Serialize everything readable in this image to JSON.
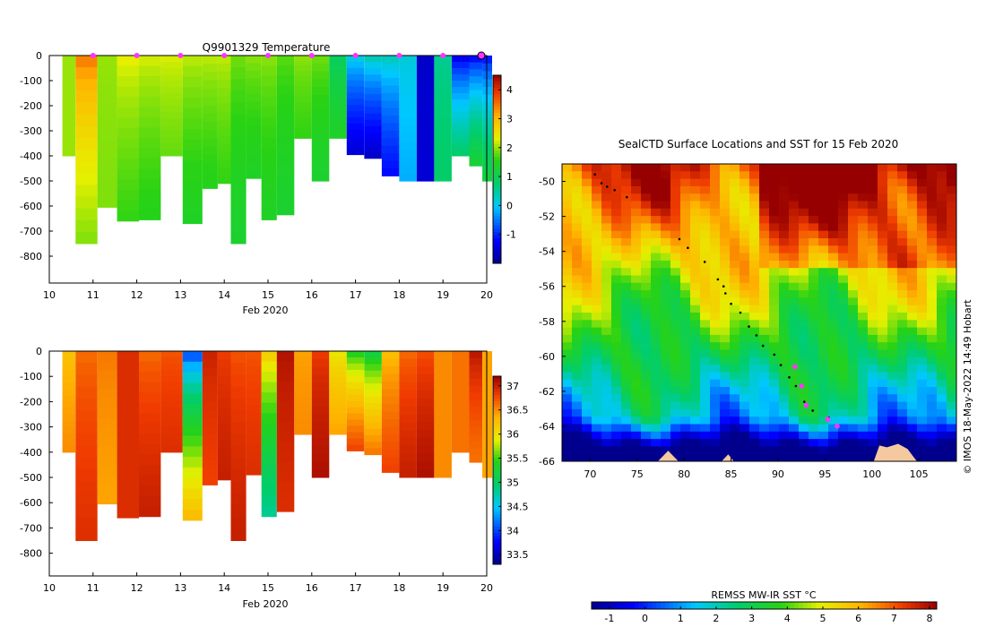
{
  "temperature_panel": {
    "title": "Q9901329  Temperature",
    "xlabel": "Feb 2020",
    "x_ticks": [
      "10",
      "11",
      "12",
      "13",
      "14",
      "15",
      "16",
      "17",
      "18",
      "19",
      "20"
    ],
    "y_ticks": [
      "0",
      "-100",
      "-200",
      "-300",
      "-400",
      "-500",
      "-600",
      "-700",
      "-800"
    ],
    "colorbar_ticks": [
      "4",
      "3",
      "2",
      "1",
      "0",
      "-1"
    ]
  },
  "salinity_panel": {
    "xlabel": "Feb 2020",
    "x_ticks": [
      "10",
      "11",
      "12",
      "13",
      "14",
      "15",
      "16",
      "17",
      "18",
      "19",
      "20"
    ],
    "y_ticks": [
      "0",
      "-100",
      "-200",
      "-300",
      "-400",
      "-500",
      "-600",
      "-700",
      "-800"
    ],
    "colorbar_ticks": [
      "37",
      "36.5",
      "36",
      "35.5",
      "35",
      "34.5",
      "34",
      "33.5"
    ]
  },
  "map_panel": {
    "title": "SealCTD Surface Locations and SST for 15 Feb 2020",
    "lon_ticks": [
      "70",
      "75",
      "80",
      "85",
      "90",
      "95",
      "100",
      "105"
    ],
    "lat_ticks": [
      "-50",
      "-52",
      "-54",
      "-56",
      "-58",
      "-60",
      "-62",
      "-64",
      "-66"
    ],
    "sst_colorbar_label": "REMSS MW-IR SST °C",
    "sst_colorbar_ticks": [
      "-1",
      "0",
      "1",
      "2",
      "3",
      "4",
      "5",
      "6",
      "7",
      "8"
    ],
    "credit": "© IMOS 18-May-2022 14:49 Hobart"
  },
  "colors": {
    "land": "#f5c9a0",
    "cast_marker": "#ff33ff",
    "track_dot": "#000000"
  },
  "chart_data": [
    {
      "type": "heatmap",
      "title": "Q9901329  Temperature",
      "xlabel": "Feb 2020",
      "ylabel": "",
      "xlim": [
        10,
        20
      ],
      "ylim": [
        -900,
        0
      ],
      "colorbar_range": [
        -2,
        4.5
      ],
      "profiles": [
        {
          "day": 10.3,
          "max_depth": 400,
          "surface": 2.0,
          "deep": 2.0
        },
        {
          "day": 10.9,
          "max_depth": 750,
          "surface": 3.6,
          "deep": 1.9
        },
        {
          "day": 11.3,
          "max_depth": 605,
          "surface": 2.0,
          "deep": 1.9
        },
        {
          "day": 11.8,
          "max_depth": 660,
          "surface": 2.4,
          "deep": 1.6
        },
        {
          "day": 12.3,
          "max_depth": 655,
          "surface": 2.3,
          "deep": 1.5
        },
        {
          "day": 12.8,
          "max_depth": 400,
          "surface": 2.3,
          "deep": 1.8
        },
        {
          "day": 13.3,
          "max_depth": 670,
          "surface": 2.2,
          "deep": 1.4
        },
        {
          "day": 13.7,
          "max_depth": 530,
          "surface": 2.2,
          "deep": 1.5
        },
        {
          "day": 14.0,
          "max_depth": 510,
          "surface": 2.2,
          "deep": 1.6
        },
        {
          "day": 14.3,
          "max_depth": 750,
          "surface": 1.9,
          "deep": 1.3
        },
        {
          "day": 14.7,
          "max_depth": 490,
          "surface": 2.0,
          "deep": 1.4
        },
        {
          "day": 15.0,
          "max_depth": 655,
          "surface": 2.0,
          "deep": 1.4
        },
        {
          "day": 15.4,
          "max_depth": 635,
          "surface": 1.8,
          "deep": 1.3
        },
        {
          "day": 15.8,
          "max_depth": 330,
          "surface": 2.0,
          "deep": 1.6
        },
        {
          "day": 16.2,
          "max_depth": 500,
          "surface": 1.9,
          "deep": 1.3
        },
        {
          "day": 16.6,
          "max_depth": 330,
          "surface": 0.8,
          "deep": 1.4
        },
        {
          "day": 17.0,
          "max_depth": 395,
          "surface": 0.3,
          "deep": -1.5
        },
        {
          "day": 17.4,
          "max_depth": 410,
          "surface": 0.6,
          "deep": -1.6
        },
        {
          "day": 17.8,
          "max_depth": 480,
          "surface": 0.5,
          "deep": -1.2
        },
        {
          "day": 18.2,
          "max_depth": 500,
          "surface": 0.2,
          "deep": -0.2
        },
        {
          "day": 18.6,
          "max_depth": 500,
          "surface": -1.6,
          "deep": -1.5
        },
        {
          "day": 19.0,
          "max_depth": 500,
          "surface": 0.5,
          "deep": 0.8
        },
        {
          "day": 19.4,
          "max_depth": 400,
          "surface": -1.6,
          "deep": 0.8
        },
        {
          "day": 19.8,
          "max_depth": 440,
          "surface": -1.5,
          "deep": 1.3
        },
        {
          "day": 20.0,
          "max_depth": 500,
          "surface": -1.4,
          "deep": 1.2
        }
      ],
      "cast_markers_day": [
        11,
        12,
        13,
        14,
        15,
        16,
        17,
        18,
        19,
        20
      ]
    },
    {
      "type": "heatmap",
      "title": "",
      "xlabel": "Feb 2020",
      "ylabel": "",
      "xlim": [
        10,
        20
      ],
      "ylim": [
        -900,
        0
      ],
      "colorbar_range": [
        33.3,
        37.2
      ],
      "profiles": [
        {
          "day": 10.3,
          "max_depth": 400,
          "surface": 36.2,
          "deep": 36.5
        },
        {
          "day": 10.9,
          "max_depth": 750,
          "surface": 36.6,
          "deep": 36.9
        },
        {
          "day": 11.3,
          "max_depth": 605,
          "surface": 36.6,
          "deep": 36.4
        },
        {
          "day": 11.8,
          "max_depth": 660,
          "surface": 36.9,
          "deep": 36.9
        },
        {
          "day": 12.3,
          "max_depth": 655,
          "surface": 36.6,
          "deep": 37.0
        },
        {
          "day": 12.8,
          "max_depth": 400,
          "surface": 36.7,
          "deep": 36.9
        },
        {
          "day": 13.3,
          "max_depth": 670,
          "surface": 33.8,
          "deep": 36.3
        },
        {
          "day": 13.7,
          "max_depth": 530,
          "surface": 37.0,
          "deep": 36.8
        },
        {
          "day": 14.0,
          "max_depth": 510,
          "surface": 36.8,
          "deep": 37.0
        },
        {
          "day": 14.3,
          "max_depth": 750,
          "surface": 36.7,
          "deep": 37.0
        },
        {
          "day": 14.7,
          "max_depth": 490,
          "surface": 36.7,
          "deep": 36.9
        },
        {
          "day": 15.0,
          "max_depth": 655,
          "surface": 36.3,
          "deep": 34.8
        },
        {
          "day": 15.4,
          "max_depth": 635,
          "surface": 37.1,
          "deep": 36.9
        },
        {
          "day": 15.8,
          "max_depth": 330,
          "surface": 36.4,
          "deep": 36.5
        },
        {
          "day": 16.2,
          "max_depth": 500,
          "surface": 36.8,
          "deep": 37.1
        },
        {
          "day": 16.6,
          "max_depth": 330,
          "surface": 35.9,
          "deep": 36.4
        },
        {
          "day": 17.0,
          "max_depth": 395,
          "surface": 35.2,
          "deep": 36.8
        },
        {
          "day": 17.4,
          "max_depth": 410,
          "surface": 35.0,
          "deep": 36.6
        },
        {
          "day": 17.8,
          "max_depth": 480,
          "surface": 36.2,
          "deep": 36.8
        },
        {
          "day": 18.2,
          "max_depth": 500,
          "surface": 36.6,
          "deep": 37.0
        },
        {
          "day": 18.6,
          "max_depth": 500,
          "surface": 36.7,
          "deep": 37.1
        },
        {
          "day": 19.0,
          "max_depth": 500,
          "surface": 36.5,
          "deep": 36.5
        },
        {
          "day": 19.4,
          "max_depth": 400,
          "surface": 36.6,
          "deep": 36.6
        },
        {
          "day": 19.8,
          "max_depth": 440,
          "surface": 37.1,
          "deep": 36.6
        },
        {
          "day": 20.0,
          "max_depth": 500,
          "surface": 36.4,
          "deep": 36.4
        }
      ]
    },
    {
      "type": "scatter",
      "title": "SealCTD Surface Locations and SST for 15 Feb 2020",
      "xlabel": "",
      "ylabel": "",
      "xlim": [
        67,
        109
      ],
      "ylim": [
        -66,
        -49
      ],
      "colorbar_label": "REMSS MW-IR SST °C",
      "colorbar_range": [
        -1.5,
        8.2
      ],
      "track": {
        "lon": [
          70.5,
          71.2,
          71.8,
          72.6,
          73.9,
          79.5,
          80.4,
          82.2,
          83.6,
          84.2,
          84.4,
          85.0,
          86.0,
          86.9,
          87.7,
          88.4,
          89.6,
          90.3,
          91.2,
          91.9,
          92.8,
          93.7,
          95.4
        ],
        "lat": [
          -49.6,
          -50.1,
          -50.3,
          -50.5,
          -50.9,
          -53.3,
          -53.8,
          -54.6,
          -55.6,
          -56.0,
          -56.4,
          -57.0,
          -57.5,
          -58.3,
          -58.8,
          -59.4,
          -59.9,
          -60.5,
          -61.2,
          -61.7,
          -62.6,
          -63.1,
          -63.5
        ],
        "cast_lon": [
          91.8,
          92.5,
          93.0,
          95.3,
          96.3
        ],
        "cast_lat": [
          -60.6,
          -61.7,
          -62.8,
          -63.6,
          -64.0
        ]
      }
    }
  ]
}
